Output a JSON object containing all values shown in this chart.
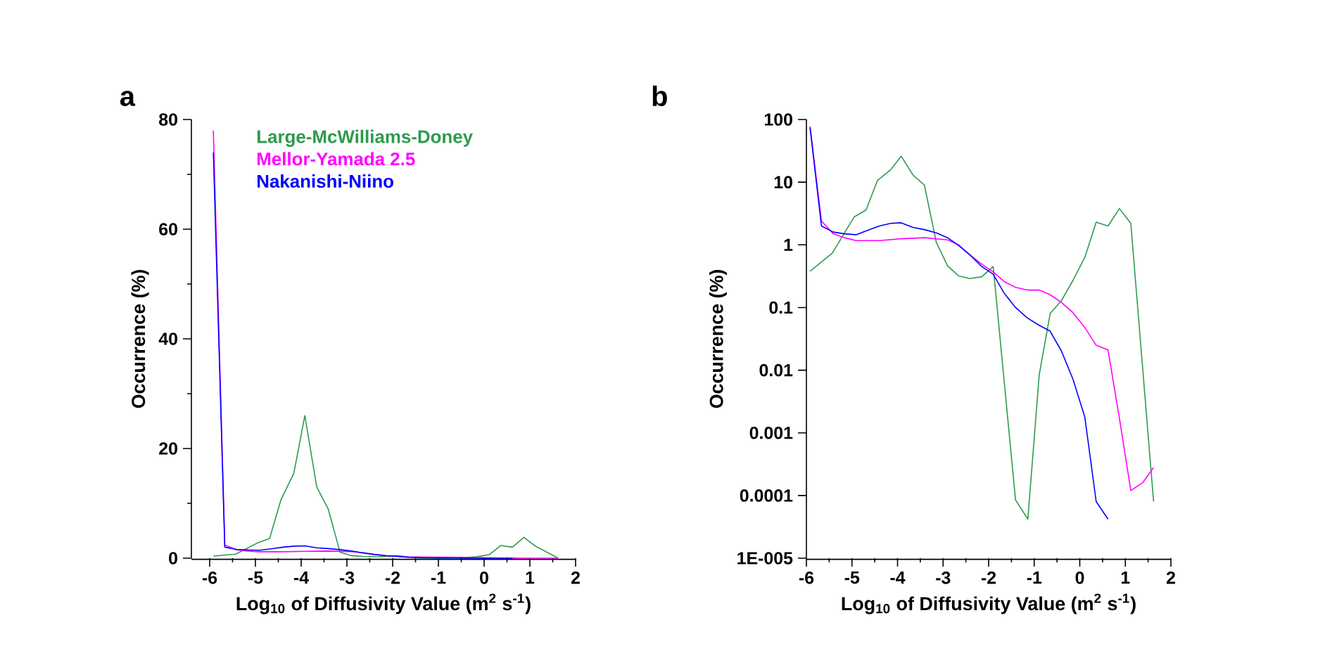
{
  "chart_data": [
    {
      "type": "line",
      "title": "a",
      "xlabel": "Log$_{10}$ of Diffusivity Value (m$^{2}$ s$^{-1}$)",
      "ylabel": "Occurrence (%)",
      "xlim": [
        -6.4,
        2
      ],
      "ylim": [
        0,
        80
      ],
      "xticks": [
        -6,
        -5,
        -4,
        -3,
        -2,
        -1,
        0,
        1,
        2
      ],
      "yticks": [
        0,
        20,
        40,
        60,
        80
      ],
      "legend": "top",
      "grid": false,
      "series": [
        {
          "name": "Large-McWilliams-Doney",
          "color": "#2e9a4f",
          "x": [
            -5.92,
            -5.43,
            -4.95,
            -4.69,
            -4.44,
            -4.16,
            -3.92,
            -3.66,
            -3.41,
            -3.15,
            -2.9,
            -2.66,
            -2.41,
            -2.15,
            -1.9,
            -1.41,
            -1.14,
            -0.89,
            -0.65,
            -0.4,
            -0.15,
            0.11,
            0.36,
            0.62,
            0.87,
            1.12,
            1.62
          ],
          "values": [
            0.38,
            0.74,
            2.8,
            3.6,
            10.7,
            15.5,
            26,
            13,
            9,
            1.1,
            0.46,
            0.32,
            0.29,
            0.31,
            0.45,
            8.5e-05,
            4.2e-05,
            0.0085,
            0.08,
            0.13,
            0.27,
            0.63,
            2.3,
            2.0,
            3.8,
            2.2,
            8e-05
          ]
        },
        {
          "name": "Mellor-Yamada 2.5",
          "color": "#ff00ff",
          "x": [
            -5.92,
            -5.67,
            -5.41,
            -5.16,
            -4.91,
            -4.4,
            -3.92,
            -3.41,
            -2.9,
            -2.66,
            -2.41,
            -2.15,
            -1.9,
            -1.66,
            -1.41,
            -1.15,
            -0.89,
            -0.65,
            -0.4,
            -0.15,
            0.11,
            0.36,
            0.62,
            0.87,
            1.12,
            1.38,
            1.62
          ],
          "values": [
            78,
            2.4,
            1.5,
            1.3,
            1.17,
            1.17,
            1.25,
            1.3,
            1.2,
            1.0,
            0.69,
            0.49,
            0.37,
            0.26,
            0.21,
            0.19,
            0.19,
            0.16,
            0.12,
            0.083,
            0.048,
            0.025,
            0.021,
            0.0017,
            0.00012,
            0.00016,
            0.00028
          ]
        },
        {
          "name": "Nakanishi-Niino",
          "color": "#0000ff",
          "x": [
            -5.92,
            -5.67,
            -5.41,
            -5.16,
            -4.91,
            -4.66,
            -4.4,
            -4.15,
            -3.92,
            -3.66,
            -3.41,
            -3.15,
            -2.9,
            -2.66,
            -2.41,
            -2.15,
            -1.9,
            -1.66,
            -1.41,
            -1.15,
            -0.89,
            -0.65,
            -0.4,
            -0.15,
            0.11,
            0.36,
            0.62
          ],
          "values": [
            74,
            2.0,
            1.6,
            1.5,
            1.45,
            1.7,
            2.0,
            2.2,
            2.25,
            1.9,
            1.75,
            1.55,
            1.3,
            0.98,
            0.69,
            0.45,
            0.34,
            0.17,
            0.1,
            0.068,
            0.052,
            0.042,
            0.02,
            0.0072,
            0.0018,
            8e-05,
            4.2e-05
          ]
        }
      ]
    },
    {
      "type": "line",
      "title": "b",
      "xlabel": "Log$_{10}$ of Diffusivity Value (m$^{2}$ s$^{-1}$)",
      "ylabel": "Occurrence (%)",
      "xlim": [
        -6,
        2
      ],
      "ylim": [
        1e-05,
        100
      ],
      "log": "y",
      "xticks": [
        -6,
        -5,
        -4,
        -3,
        -2,
        -1,
        0,
        1,
        2
      ],
      "yticks": [
        {
          "value": 1e-05,
          "label": "1E-005"
        },
        0.0001,
        0.001,
        0.01,
        0.1,
        1,
        10,
        100
      ],
      "grid": false,
      "series": [
        {
          "color": "#2e9a4f",
          "x": [
            -5.92,
            -5.43,
            -4.95,
            -4.69,
            -4.44,
            -4.16,
            -3.92,
            -3.66,
            -3.41,
            -3.15,
            -2.9,
            -2.66,
            -2.41,
            -2.15,
            -1.9,
            -1.41,
            -1.14,
            -0.89,
            -0.65,
            -0.4,
            -0.15,
            0.11,
            0.36,
            0.62,
            0.87,
            1.12,
            1.62
          ],
          "values": [
            0.38,
            0.74,
            2.8,
            3.6,
            10.7,
            15.5,
            26,
            13,
            9,
            1.1,
            0.46,
            0.32,
            0.29,
            0.31,
            0.45,
            8.5e-05,
            4.2e-05,
            0.0085,
            0.08,
            0.13,
            0.27,
            0.63,
            2.3,
            2.0,
            3.8,
            2.2,
            8e-05
          ]
        },
        {
          "color": "#ff00ff",
          "x": [
            -5.92,
            -5.67,
            -5.41,
            -5.16,
            -4.91,
            -4.4,
            -3.92,
            -3.41,
            -2.9,
            -2.66,
            -2.41,
            -2.15,
            -1.9,
            -1.66,
            -1.41,
            -1.15,
            -0.89,
            -0.65,
            -0.4,
            -0.15,
            0.11,
            0.36,
            0.62,
            0.87,
            1.12,
            1.38,
            1.62
          ],
          "values": [
            78,
            2.4,
            1.5,
            1.3,
            1.17,
            1.17,
            1.25,
            1.3,
            1.2,
            1.0,
            0.69,
            0.49,
            0.37,
            0.26,
            0.21,
            0.19,
            0.19,
            0.16,
            0.12,
            0.083,
            0.048,
            0.025,
            0.021,
            0.0017,
            0.00012,
            0.00016,
            0.00028
          ]
        },
        {
          "color": "#0000ff",
          "x": [
            -5.92,
            -5.67,
            -5.41,
            -5.16,
            -4.91,
            -4.66,
            -4.4,
            -4.15,
            -3.92,
            -3.66,
            -3.41,
            -3.15,
            -2.9,
            -2.66,
            -2.41,
            -2.15,
            -1.9,
            -1.66,
            -1.41,
            -1.15,
            -0.89,
            -0.65,
            -0.4,
            -0.15,
            0.11,
            0.36,
            0.62
          ],
          "values": [
            74,
            2.0,
            1.6,
            1.5,
            1.45,
            1.7,
            2.0,
            2.2,
            2.25,
            1.9,
            1.75,
            1.55,
            1.3,
            0.98,
            0.69,
            0.45,
            0.34,
            0.17,
            0.1,
            0.068,
            0.052,
            0.042,
            0.02,
            0.0072,
            0.0018,
            8e-05,
            4.2e-05
          ]
        }
      ]
    }
  ]
}
